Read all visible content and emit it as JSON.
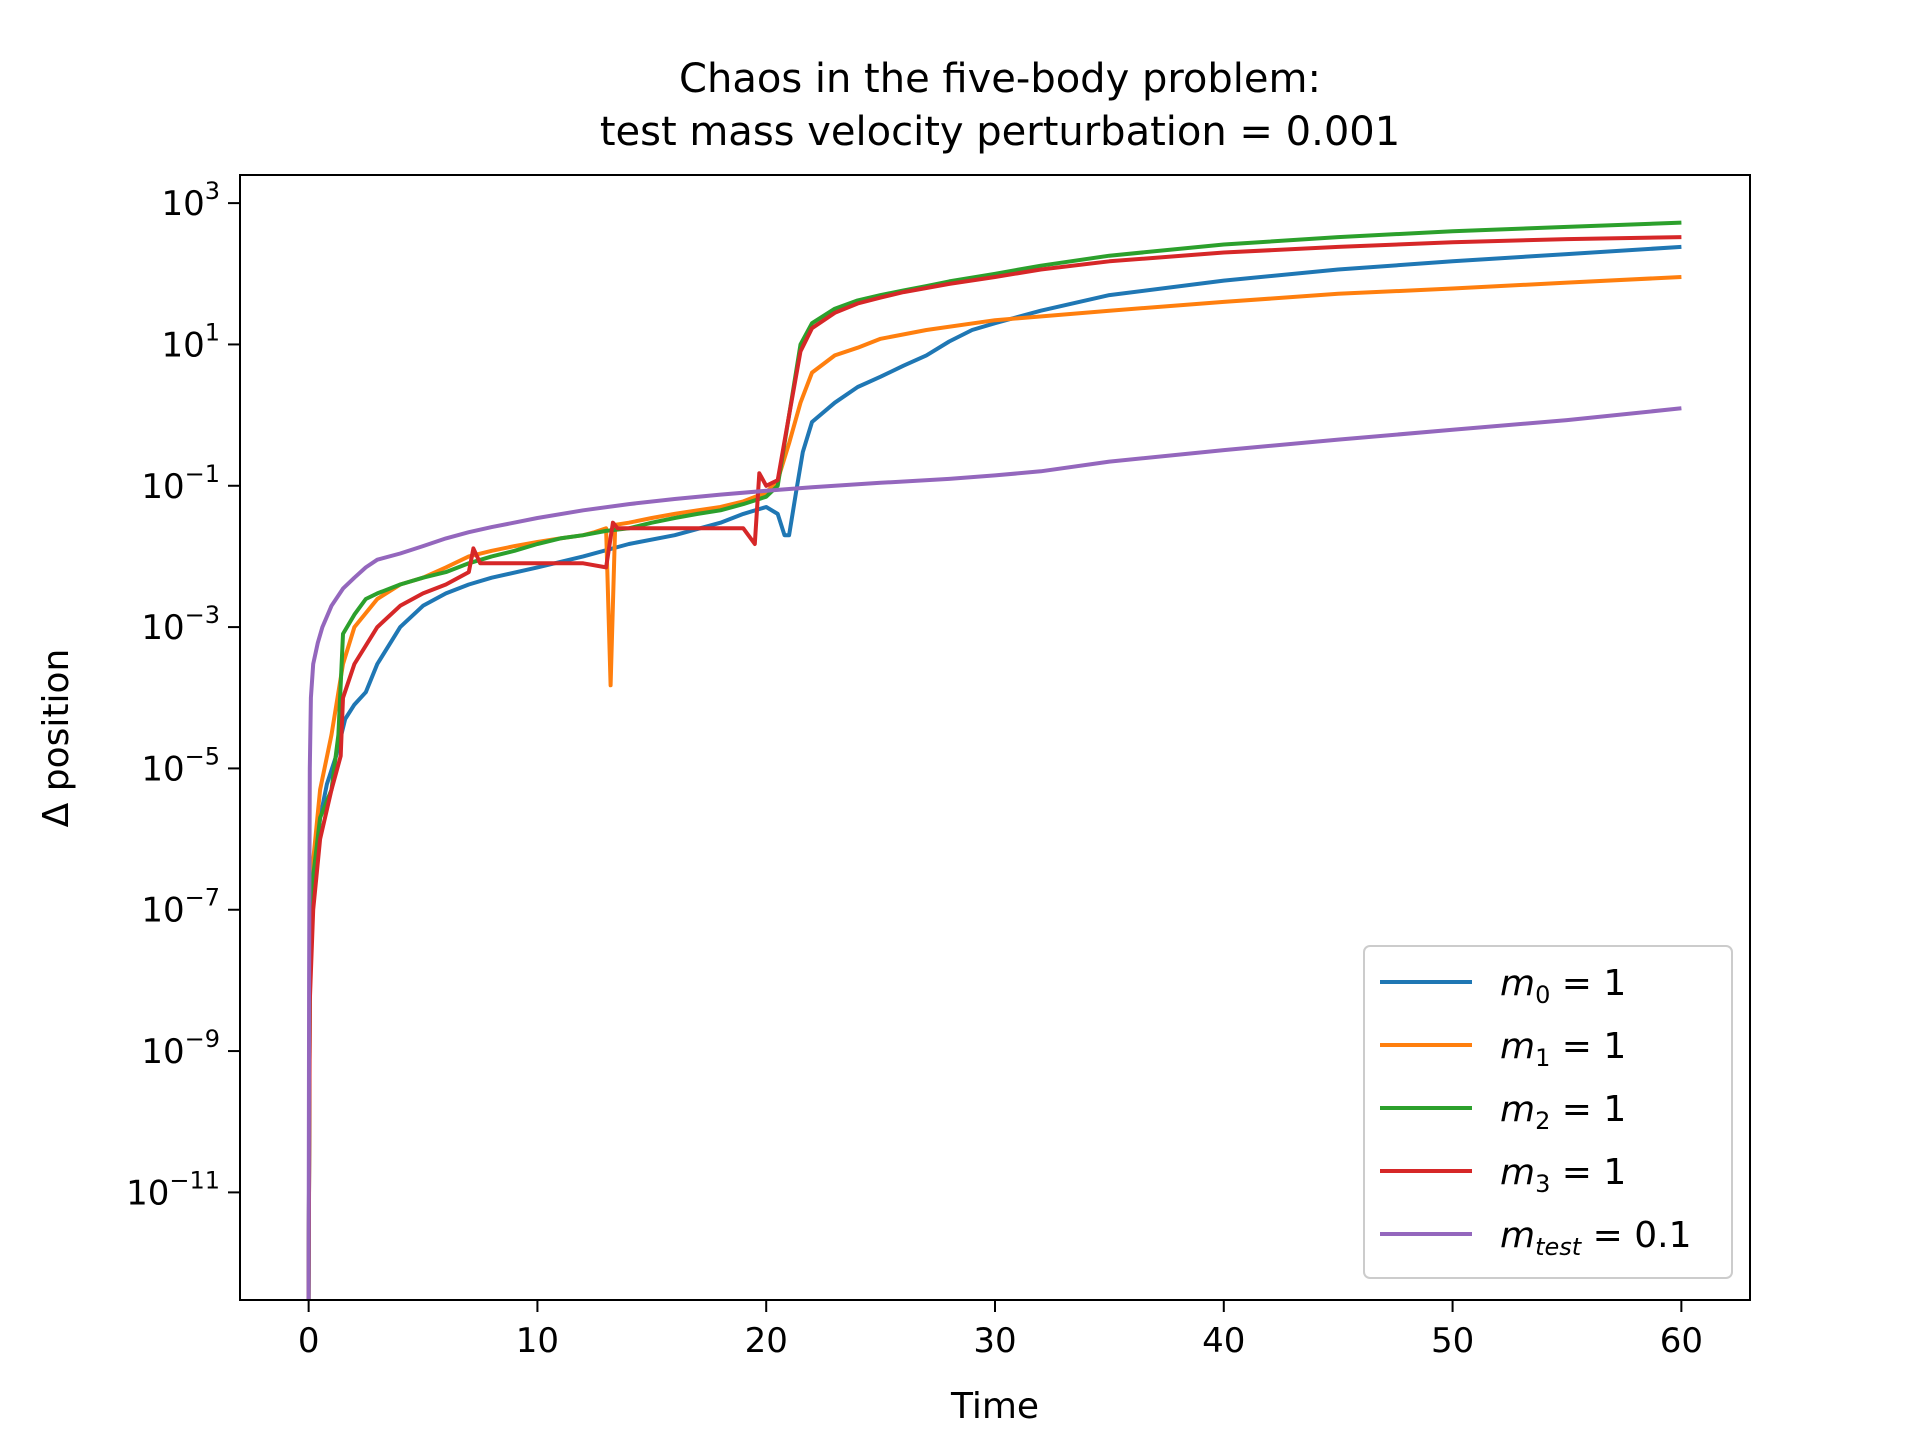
{
  "chart_data": {
    "type": "line",
    "title_line1": "Chaos in the five-body problem:",
    "title_line2": "test mass velocity perturbation = 0.001",
    "xlabel": "Time",
    "ylabel": "Δ position",
    "xlim": [
      -3,
      63
    ],
    "ylim": [
      3e-13,
      2500
    ],
    "yscale": "log",
    "x_ticks": [
      0,
      10,
      20,
      30,
      40,
      50,
      60
    ],
    "y_ticks": [
      {
        "value": 1e-11,
        "base": "10",
        "exp": "−11"
      },
      {
        "value": 1e-09,
        "base": "10",
        "exp": "−9"
      },
      {
        "value": 1e-07,
        "base": "10",
        "exp": "−7"
      },
      {
        "value": 1e-05,
        "base": "10",
        "exp": "−5"
      },
      {
        "value": 0.001,
        "base": "10",
        "exp": "−3"
      },
      {
        "value": 0.1,
        "base": "10",
        "exp": "−1"
      },
      {
        "value": 10,
        "base": "10",
        "exp": "1"
      },
      {
        "value": 1000,
        "base": "10",
        "exp": "3"
      }
    ],
    "grid": false,
    "legend_position": "lower-right",
    "series": [
      {
        "name": "m0 = 1",
        "legend": {
          "sym": "m",
          "sub": "0",
          "rest": " = 1"
        },
        "color": "#1f77b4",
        "x": [
          0,
          0.05,
          0.2,
          0.5,
          0.8,
          1.2,
          1.6,
          2,
          2.5,
          3,
          4,
          5,
          6,
          7,
          8,
          10,
          12,
          14,
          16,
          18,
          19,
          20,
          20.5,
          20.8,
          21,
          21.3,
          21.6,
          22,
          23,
          24,
          25,
          26,
          27,
          28,
          29,
          30,
          32,
          35,
          40,
          45,
          50,
          55,
          60
        ],
        "y": [
          3e-13,
          1e-08,
          3e-07,
          2e-06,
          6e-06,
          1.5e-05,
          5e-05,
          8e-05,
          0.00012,
          0.0003,
          0.001,
          0.002,
          0.003,
          0.004,
          0.005,
          0.007,
          0.01,
          0.015,
          0.02,
          0.03,
          0.04,
          0.05,
          0.04,
          0.02,
          0.02,
          0.08,
          0.3,
          0.8,
          1.5,
          2.5,
          3.5,
          5,
          7,
          11,
          16,
          20,
          30,
          50,
          80,
          115,
          150,
          190,
          240
        ]
      },
      {
        "name": "m1 = 1",
        "legend": {
          "sym": "m",
          "sub": "1",
          "rest": " = 1"
        },
        "color": "#ff7f0e",
        "x": [
          0,
          0.05,
          0.2,
          0.5,
          1,
          1.5,
          2,
          3,
          4,
          5,
          6,
          7,
          8,
          9,
          10,
          11,
          12,
          12.5,
          13,
          13.2,
          13.4,
          14,
          15,
          16,
          17,
          18,
          19,
          20,
          20.5,
          21,
          21.5,
          22,
          23,
          24,
          25,
          27,
          30,
          35,
          40,
          45,
          50,
          55,
          60
        ],
        "y": [
          3e-13,
          1e-08,
          5e-07,
          5e-06,
          3e-05,
          0.0003,
          0.001,
          0.0025,
          0.004,
          0.005,
          0.007,
          0.01,
          0.012,
          0.014,
          0.016,
          0.018,
          0.02,
          0.022,
          0.025,
          0.00015,
          0.028,
          0.03,
          0.035,
          0.04,
          0.045,
          0.05,
          0.06,
          0.08,
          0.12,
          0.4,
          1.5,
          4,
          7,
          9,
          12,
          16,
          22,
          30,
          40,
          52,
          62,
          75,
          90
        ]
      },
      {
        "name": "m2 = 1",
        "legend": {
          "sym": "m",
          "sub": "2",
          "rest": " = 1"
        },
        "color": "#2ca02c",
        "x": [
          0,
          0.05,
          0.2,
          0.5,
          1,
          1.3,
          1.5,
          2,
          2.5,
          3,
          4,
          5,
          6,
          7,
          8,
          9,
          10,
          11,
          12,
          13,
          14,
          15,
          16,
          17,
          18,
          19,
          20,
          20.5,
          21,
          21.5,
          22,
          23,
          24,
          25,
          26,
          27,
          28,
          30,
          32,
          35,
          40,
          45,
          50,
          55,
          60
        ],
        "y": [
          3e-13,
          1e-08,
          3e-07,
          2e-06,
          5e-06,
          3e-05,
          0.0008,
          0.0015,
          0.0025,
          0.003,
          0.004,
          0.005,
          0.006,
          0.008,
          0.01,
          0.012,
          0.015,
          0.018,
          0.02,
          0.023,
          0.025,
          0.03,
          0.035,
          0.04,
          0.045,
          0.055,
          0.07,
          0.1,
          1,
          10,
          20,
          32,
          42,
          50,
          58,
          67,
          78,
          100,
          130,
          180,
          260,
          330,
          400,
          460,
          530
        ]
      },
      {
        "name": "m3 = 1",
        "legend": {
          "sym": "m",
          "sub": "3",
          "rest": " = 1"
        },
        "color": "#d62728",
        "x": [
          0,
          0.05,
          0.2,
          0.5,
          1,
          1.4,
          1.5,
          2,
          3,
          4,
          5,
          6,
          7,
          7.2,
          7.5,
          8,
          10,
          12,
          13,
          13.3,
          13.5,
          15,
          17,
          19,
          19.5,
          19.7,
          20,
          20.5,
          21,
          21.5,
          22,
          23,
          24,
          25,
          26,
          27,
          28,
          30,
          32,
          35,
          40,
          45,
          50,
          55,
          60
        ],
        "y": [
          3e-13,
          5e-09,
          1e-07,
          1e-06,
          5e-06,
          1.5e-05,
          0.0001,
          0.0003,
          0.001,
          0.002,
          0.003,
          0.004,
          0.006,
          0.013,
          0.008,
          0.008,
          0.008,
          0.008,
          0.007,
          0.03,
          0.025,
          0.025,
          0.025,
          0.025,
          0.015,
          0.15,
          0.1,
          0.12,
          1,
          8,
          17,
          28,
          38,
          46,
          55,
          63,
          72,
          90,
          115,
          150,
          200,
          240,
          280,
          310,
          330
        ]
      },
      {
        "name": "mtest = 0.1",
        "legend": {
          "sym": "m",
          "sub": "test",
          "rest": " = 0.1"
        },
        "color": "#9467bd",
        "x": [
          0,
          0.02,
          0.05,
          0.1,
          0.2,
          0.4,
          0.6,
          1,
          1.5,
          2,
          2.5,
          3,
          4,
          5,
          6,
          7,
          8,
          10,
          12,
          14,
          16,
          18,
          20,
          22,
          25,
          28,
          30,
          32,
          35,
          40,
          45,
          50,
          55,
          60
        ],
        "y": [
          3e-13,
          1e-08,
          1e-05,
          0.0001,
          0.0003,
          0.0006,
          0.001,
          0.002,
          0.0035,
          0.005,
          0.007,
          0.009,
          0.011,
          0.014,
          0.018,
          0.022,
          0.026,
          0.035,
          0.045,
          0.055,
          0.065,
          0.075,
          0.085,
          0.095,
          0.11,
          0.125,
          0.14,
          0.16,
          0.22,
          0.32,
          0.45,
          0.62,
          0.85,
          1.25
        ]
      }
    ]
  }
}
